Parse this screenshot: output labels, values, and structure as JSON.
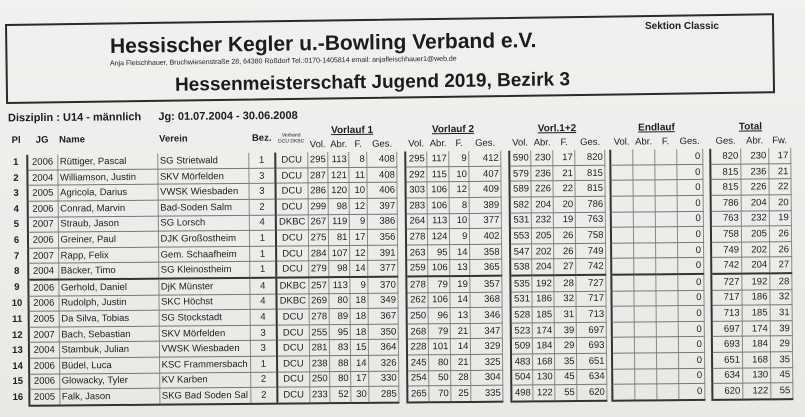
{
  "header": {
    "title": "Hessischer Kegler u.-Bowling Verband e.V.",
    "address": "Anja Fleischhauer, Bruchwiesenstraße 28, 64380 Roßdorf   Tel.:0170-1405814   email: anjafleischhauer1@web.de",
    "subtitle": "Hessenmeisterschaft Jugend 2019, Bezirk 3",
    "section": "Sektion Classic"
  },
  "discipline": {
    "label": "Disziplin : U14 - männlich",
    "years": "Jg:  01.07.2004 - 30.06.2008"
  },
  "columns": {
    "pl": "Pl",
    "jg": "JG",
    "name": "Name",
    "verein": "Verein",
    "bez": "Bez.",
    "verband": "Verband DCU DKBC",
    "vorlauf1": "Vorlauf 1",
    "vorlauf2": "Vorlauf 2",
    "vorl12": "Vorl.1+2",
    "endlauf": "Endlauf",
    "total": "Total",
    "vol": "Vol.",
    "abr": "Abr.",
    "f": "F.",
    "ges": "Ges.",
    "fw": "Fw."
  },
  "rows": [
    {
      "pl": "1",
      "jg": "2006",
      "name": "Rüttiger, Pascal",
      "verein": "SG Strietwald",
      "bez": "1",
      "verband": "DCU",
      "v1": [
        "295",
        "113",
        "8",
        "408"
      ],
      "v2": [
        "295",
        "117",
        "9",
        "412"
      ],
      "v12": [
        "590",
        "230",
        "17",
        "820"
      ],
      "end": [
        "",
        "",
        "",
        "0"
      ],
      "total": [
        "820",
        "230",
        "17"
      ]
    },
    {
      "pl": "2",
      "jg": "2004",
      "name": "Williamson, Justin",
      "verein": "SKV Mörfelden",
      "bez": "3",
      "verband": "DCU",
      "v1": [
        "287",
        "121",
        "11",
        "408"
      ],
      "v2": [
        "292",
        "115",
        "10",
        "407"
      ],
      "v12": [
        "579",
        "236",
        "21",
        "815"
      ],
      "end": [
        "",
        "",
        "",
        "0"
      ],
      "total": [
        "815",
        "236",
        "21"
      ]
    },
    {
      "pl": "3",
      "jg": "2005",
      "name": "Agricola, Darius",
      "verein": "VWSK Wiesbaden",
      "bez": "3",
      "verband": "DCU",
      "v1": [
        "286",
        "120",
        "10",
        "406"
      ],
      "v2": [
        "303",
        "106",
        "12",
        "409"
      ],
      "v12": [
        "589",
        "226",
        "22",
        "815"
      ],
      "end": [
        "",
        "",
        "",
        "0"
      ],
      "total": [
        "815",
        "226",
        "22"
      ]
    },
    {
      "pl": "4",
      "jg": "2006",
      "name": "Conrad, Marvin",
      "verein": "Bad-Soden Salm",
      "bez": "2",
      "verband": "DCU",
      "v1": [
        "299",
        "98",
        "12",
        "397"
      ],
      "v2": [
        "283",
        "106",
        "8",
        "389"
      ],
      "v12": [
        "582",
        "204",
        "20",
        "786"
      ],
      "end": [
        "",
        "",
        "",
        "0"
      ],
      "total": [
        "786",
        "204",
        "20"
      ]
    },
    {
      "pl": "5",
      "jg": "2007",
      "name": "Straub,  Jason",
      "verein": "SG Lorsch",
      "bez": "4",
      "verband": "DKBC",
      "v1": [
        "267",
        "119",
        "9",
        "386"
      ],
      "v2": [
        "264",
        "113",
        "10",
        "377"
      ],
      "v12": [
        "531",
        "232",
        "19",
        "763"
      ],
      "end": [
        "",
        "",
        "",
        "0"
      ],
      "total": [
        "763",
        "232",
        "19"
      ]
    },
    {
      "pl": "6",
      "jg": "2006",
      "name": "Greiner, Paul",
      "verein": "DJK Großostheim",
      "bez": "1",
      "verband": "DCU",
      "v1": [
        "275",
        "81",
        "17",
        "356"
      ],
      "v2": [
        "278",
        "124",
        "9",
        "402"
      ],
      "v12": [
        "553",
        "205",
        "26",
        "758"
      ],
      "end": [
        "",
        "",
        "",
        "0"
      ],
      "total": [
        "758",
        "205",
        "26"
      ]
    },
    {
      "pl": "7",
      "jg": "2007",
      "name": "Rapp, Felix",
      "verein": "Gem. Schaafheim",
      "bez": "1",
      "verband": "DCU",
      "v1": [
        "284",
        "107",
        "12",
        "391"
      ],
      "v2": [
        "263",
        "95",
        "14",
        "358"
      ],
      "v12": [
        "547",
        "202",
        "26",
        "749"
      ],
      "end": [
        "",
        "",
        "",
        "0"
      ],
      "total": [
        "749",
        "202",
        "26"
      ]
    },
    {
      "pl": "8",
      "jg": "2004",
      "name": "Bäcker, Timo",
      "verein": "SG Kleinostheim",
      "bez": "1",
      "verband": "DCU",
      "v1": [
        "279",
        "98",
        "14",
        "377"
      ],
      "v2": [
        "259",
        "106",
        "13",
        "365"
      ],
      "v12": [
        "538",
        "204",
        "27",
        "742"
      ],
      "end": [
        "",
        "",
        "",
        "0"
      ],
      "total": [
        "742",
        "204",
        "27"
      ]
    },
    {
      "pl": "9",
      "jg": "2006",
      "name": "Gerhold, Daniel",
      "verein": "DjK Münster",
      "bez": "4",
      "verband": "DKBC",
      "v1": [
        "257",
        "113",
        "9",
        "370"
      ],
      "v2": [
        "278",
        "79",
        "19",
        "357"
      ],
      "v12": [
        "535",
        "192",
        "28",
        "727"
      ],
      "end": [
        "",
        "",
        "",
        "0"
      ],
      "total": [
        "727",
        "192",
        "28"
      ]
    },
    {
      "pl": "10",
      "jg": "2006",
      "name": "Rudolph, Justin",
      "verein": "SKC Höchst",
      "bez": "4",
      "verband": "DKBC",
      "v1": [
        "269",
        "80",
        "18",
        "349"
      ],
      "v2": [
        "262",
        "106",
        "14",
        "368"
      ],
      "v12": [
        "531",
        "186",
        "32",
        "717"
      ],
      "end": [
        "",
        "",
        "",
        "0"
      ],
      "total": [
        "717",
        "186",
        "32"
      ]
    },
    {
      "pl": "11",
      "jg": "2005",
      "name": "Da Silva, Tobias",
      "verein": "SG Stockstadt",
      "bez": "4",
      "verband": "DCU",
      "v1": [
        "278",
        "89",
        "18",
        "367"
      ],
      "v2": [
        "250",
        "96",
        "13",
        "346"
      ],
      "v12": [
        "528",
        "185",
        "31",
        "713"
      ],
      "end": [
        "",
        "",
        "",
        "0"
      ],
      "total": [
        "713",
        "185",
        "31"
      ]
    },
    {
      "pl": "12",
      "jg": "2007",
      "name": "Bach, Sebastian",
      "verein": "SKV Mörfelden",
      "bez": "3",
      "verband": "DCU",
      "v1": [
        "255",
        "95",
        "18",
        "350"
      ],
      "v2": [
        "268",
        "79",
        "21",
        "347"
      ],
      "v12": [
        "523",
        "174",
        "39",
        "697"
      ],
      "end": [
        "",
        "",
        "",
        "0"
      ],
      "total": [
        "697",
        "174",
        "39"
      ]
    },
    {
      "pl": "13",
      "jg": "2004",
      "name": "Stambuk, Julian",
      "verein": "VWSK Wiesbaden",
      "bez": "3",
      "verband": "DCU",
      "v1": [
        "281",
        "83",
        "15",
        "364"
      ],
      "v2": [
        "228",
        "101",
        "14",
        "329"
      ],
      "v12": [
        "509",
        "184",
        "29",
        "693"
      ],
      "end": [
        "",
        "",
        "",
        "0"
      ],
      "total": [
        "693",
        "184",
        "29"
      ]
    },
    {
      "pl": "14",
      "jg": "2006",
      "name": "Büdel, Luca",
      "verein": "KSC Frammersbach",
      "bez": "1",
      "verband": "DCU",
      "v1": [
        "238",
        "88",
        "14",
        "326"
      ],
      "v2": [
        "245",
        "80",
        "21",
        "325"
      ],
      "v12": [
        "483",
        "168",
        "35",
        "651"
      ],
      "end": [
        "",
        "",
        "",
        "0"
      ],
      "total": [
        "651",
        "168",
        "35"
      ]
    },
    {
      "pl": "15",
      "jg": "2006",
      "name": "Glowacky, Tyler",
      "verein": "KV Karben",
      "bez": "2",
      "verband": "DCU",
      "v1": [
        "250",
        "80",
        "17",
        "330"
      ],
      "v2": [
        "254",
        "50",
        "28",
        "304"
      ],
      "v12": [
        "504",
        "130",
        "45",
        "634"
      ],
      "end": [
        "",
        "",
        "",
        "0"
      ],
      "total": [
        "634",
        "130",
        "45"
      ]
    },
    {
      "pl": "16",
      "jg": "2005",
      "name": "Falk, Jason",
      "verein": "SKG Bad Soden Sal",
      "bez": "2",
      "verband": "DCU",
      "v1": [
        "233",
        "52",
        "30",
        "285"
      ],
      "v2": [
        "265",
        "70",
        "25",
        "335"
      ],
      "v12": [
        "498",
        "122",
        "55",
        "620"
      ],
      "end": [
        "",
        "",
        "",
        "0"
      ],
      "total": [
        "620",
        "122",
        "55"
      ]
    }
  ]
}
